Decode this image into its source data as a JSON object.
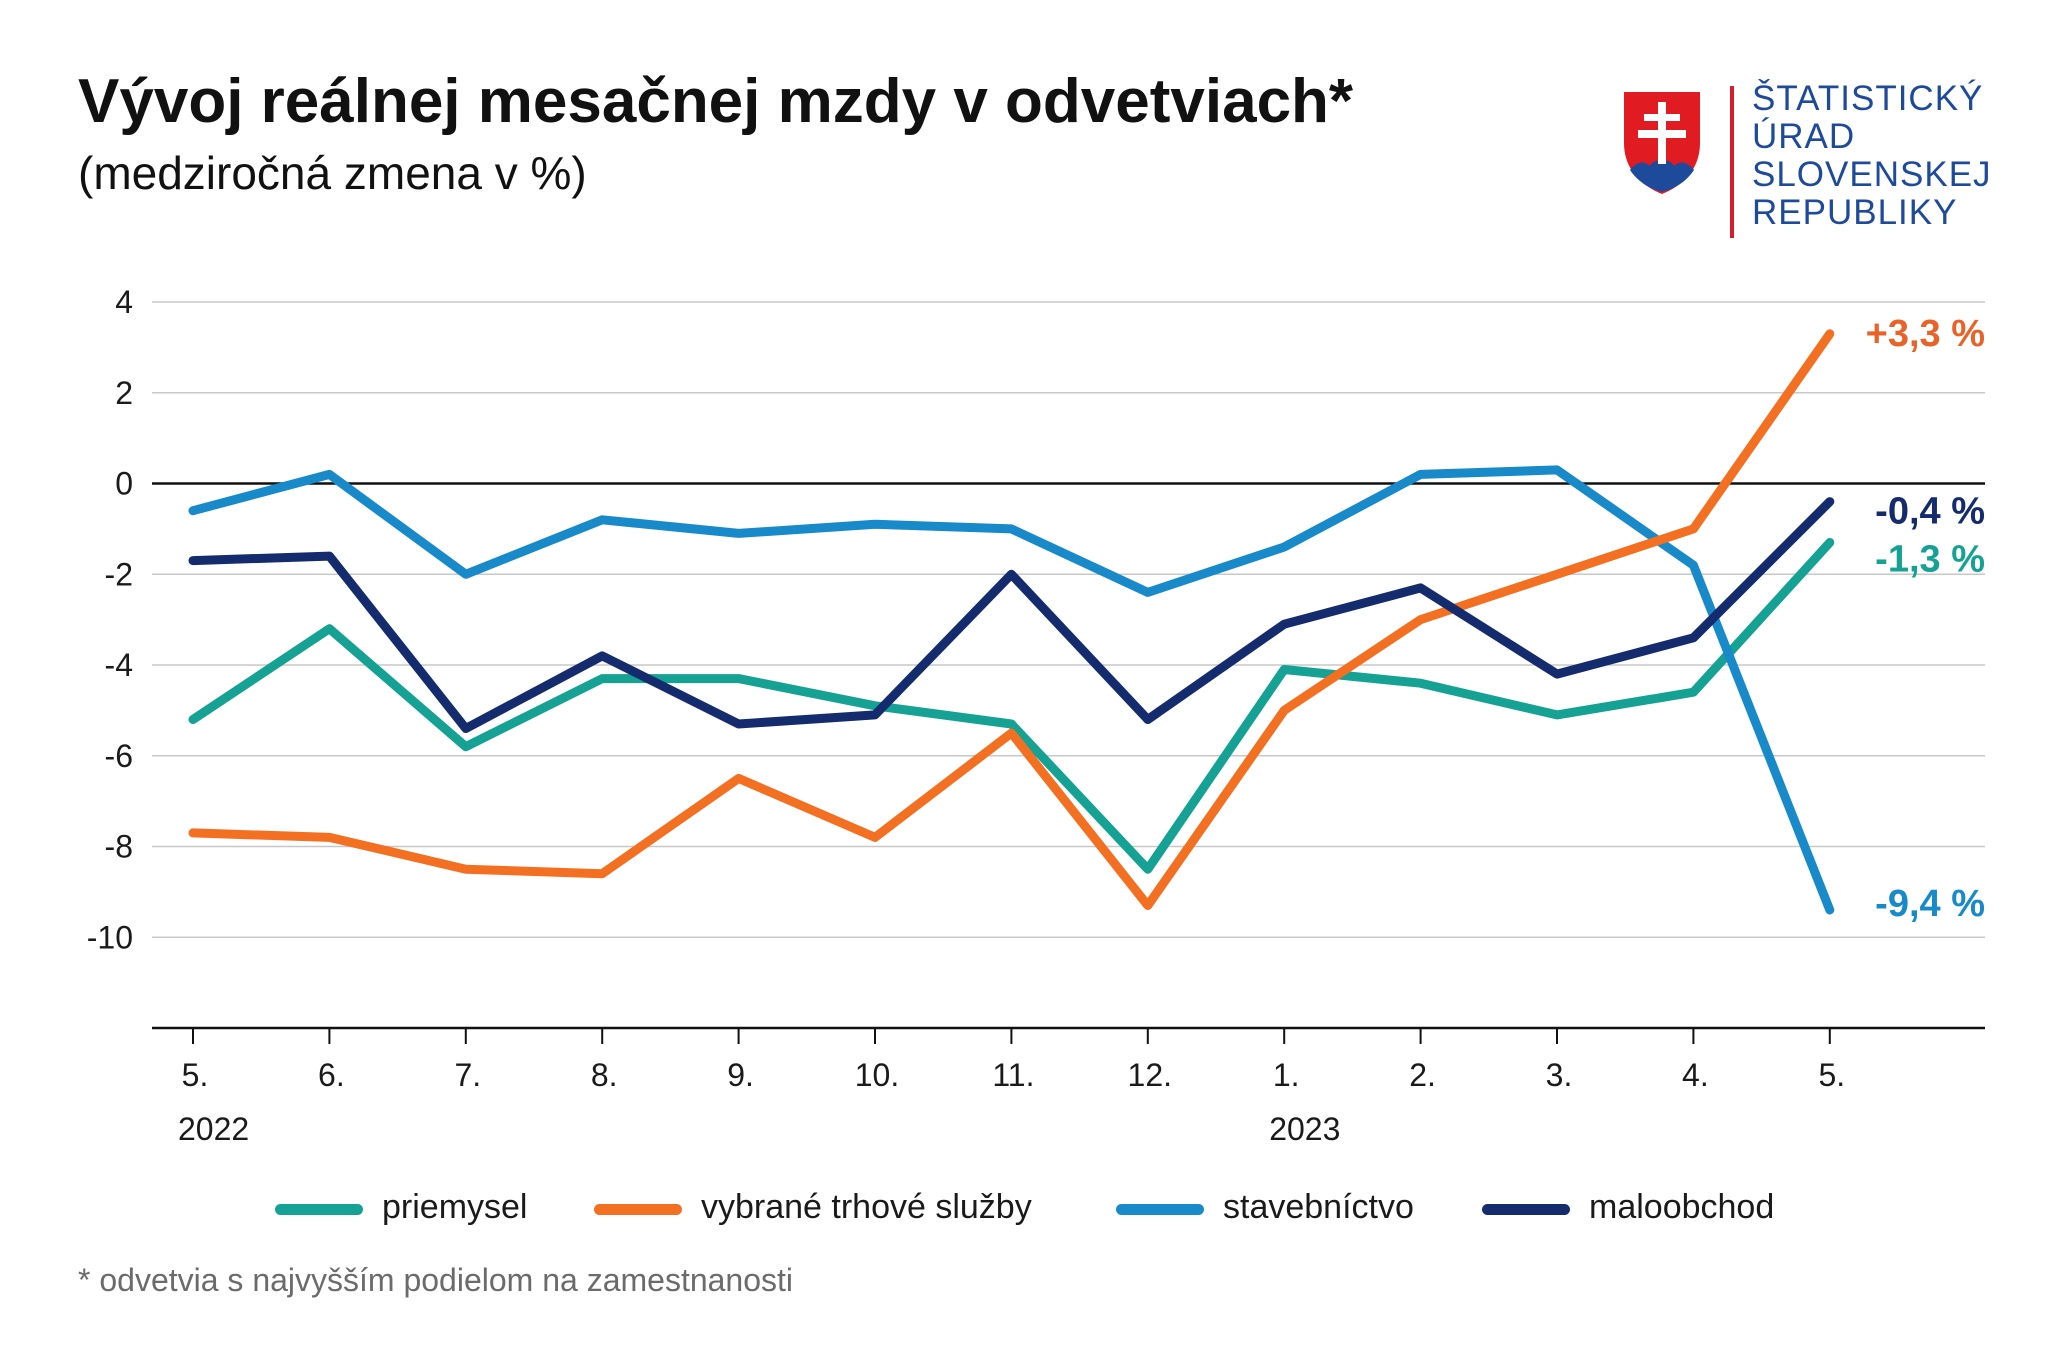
{
  "title": "Vývoj reálnej mesačnej mzdy v odvetviach*",
  "subtitle": "(medziročná zmena v %)",
  "logo": {
    "lines": [
      "ŠTATISTICKÝ",
      "ÚRAD",
      "SLOVENSKEJ",
      "REPUBLIKY"
    ]
  },
  "footnote": "* odvetvia s najvyšším podielom na zamestnanosti",
  "chart_data": {
    "type": "line",
    "title": "Vývoj reálnej mesačnej mzdy v odvetviach*",
    "subtitle": "(medziročná zmena v %)",
    "xlabel": "",
    "ylabel": "",
    "x": [
      "5.",
      "6.",
      "7.",
      "8.",
      "9.",
      "10.",
      "11.",
      "12.",
      "1.",
      "2.",
      "3.",
      "4.",
      "5."
    ],
    "x_year_labels": [
      {
        "label": "2022",
        "at_index": 0
      },
      {
        "label": "2023",
        "at_index": 8
      }
    ],
    "ylim": [
      -12,
      4
    ],
    "yticks": [
      4,
      2,
      0,
      -2,
      -4,
      -6,
      -8,
      -10
    ],
    "ytick_labels": [
      "4",
      "2",
      "0",
      "-2",
      "-4",
      "-6",
      "-8",
      "-10"
    ],
    "grid": true,
    "legend_position": "bottom",
    "series": [
      {
        "name": "priemysel",
        "color": "#15a193",
        "values": [
          -5.2,
          -3.2,
          -5.8,
          -4.3,
          -4.3,
          -4.9,
          -5.3,
          -8.5,
          -4.1,
          -4.4,
          -5.1,
          -4.6,
          -1.3
        ],
        "end_label": "-1,3 %"
      },
      {
        "name": "vybrané trhové služby",
        "color": "#f36f21",
        "values": [
          -7.7,
          -7.8,
          -8.5,
          -8.6,
          -6.5,
          -7.8,
          -5.5,
          -9.3,
          -5.0,
          -3.0,
          -2.0,
          -1.0,
          3.3
        ],
        "end_label": "+3,3 %"
      },
      {
        "name": "stavebníctvo",
        "color": "#1889c9",
        "values": [
          -0.6,
          0.2,
          -2.0,
          -0.8,
          -1.1,
          -0.9,
          -1.0,
          -2.4,
          -1.4,
          0.2,
          0.3,
          -1.8,
          -9.4
        ],
        "end_label": "-9,4 %"
      },
      {
        "name": "maloobchod",
        "color": "#142c6e",
        "values": [
          -1.7,
          -1.6,
          -5.4,
          -3.8,
          -5.3,
          -5.1,
          -2.0,
          -5.2,
          -3.1,
          -2.3,
          -4.2,
          -3.4,
          -0.4
        ],
        "end_label": "-0,4 %"
      }
    ],
    "end_label_colors": {
      "priemysel": "#15a193",
      "vybrané trhové služby": "#e8632a",
      "stavebníctvo": "#1889c9",
      "maloobchod": "#142c6e"
    }
  }
}
